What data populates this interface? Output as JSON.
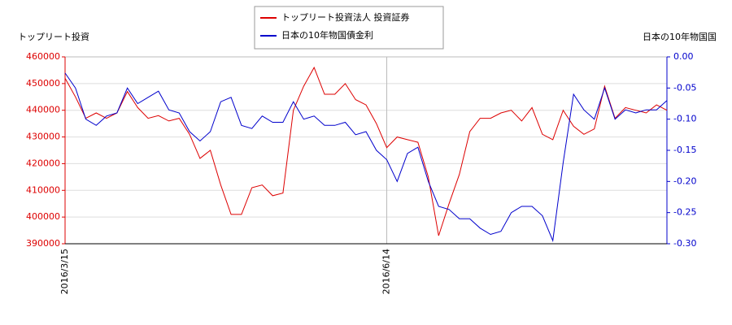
{
  "chart_data": {
    "type": "line",
    "y_label": "トップリート投資",
    "y2_label": "日本の10年物国国",
    "categories": [
      "2016/3/15",
      null,
      null,
      null,
      null,
      null,
      null,
      null,
      null,
      null,
      null,
      null,
      null,
      null,
      null,
      null,
      null,
      null,
      null,
      null,
      null,
      null,
      null,
      null,
      null,
      null,
      null,
      null,
      null,
      null,
      null,
      "2016/6/14",
      null,
      null,
      null,
      null,
      null,
      null,
      null,
      null,
      null,
      null,
      null,
      null,
      null,
      null,
      null,
      null,
      null,
      null,
      null,
      null,
      null,
      null,
      null,
      null,
      null,
      null,
      null
    ],
    "series": [
      {
        "name": "トップリート投資法人 投資証券",
        "color": "#dd0000",
        "axis": "y",
        "values": [
          452000,
          445000,
          437000,
          439000,
          437000,
          439000,
          447000,
          441000,
          437000,
          438000,
          436000,
          437000,
          431000,
          422000,
          425000,
          412000,
          401000,
          401000,
          411000,
          412000,
          408000,
          409000,
          440000,
          449000,
          456000,
          446000,
          446000,
          450000,
          444000,
          442000,
          435000,
          426000,
          430000,
          429000,
          428000,
          415000,
          393000,
          405000,
          416000,
          432000,
          437000,
          437000,
          439000,
          440000,
          436000,
          441000,
          431000,
          429000,
          440000,
          434000,
          431000,
          433000,
          449000,
          437000,
          441000,
          440000,
          439000,
          442000,
          440000
        ]
      },
      {
        "name": "日本の10年物国債金利",
        "color": "#0000cc",
        "axis": "y2",
        "values": [
          -0.026,
          -0.05,
          -0.1,
          -0.11,
          -0.095,
          -0.09,
          -0.05,
          -0.075,
          -0.065,
          -0.055,
          -0.085,
          -0.09,
          -0.12,
          -0.135,
          -0.12,
          -0.072,
          -0.065,
          -0.11,
          -0.115,
          -0.095,
          -0.105,
          -0.105,
          -0.072,
          -0.1,
          -0.095,
          -0.11,
          -0.11,
          -0.105,
          -0.125,
          -0.12,
          -0.15,
          -0.165,
          -0.2,
          -0.155,
          -0.145,
          -0.2,
          -0.24,
          -0.245,
          -0.26,
          -0.26,
          -0.275,
          -0.285,
          -0.28,
          -0.25,
          -0.24,
          -0.24,
          -0.255,
          -0.295,
          -0.17,
          -0.06,
          -0.085,
          -0.1,
          -0.05,
          -0.1,
          -0.085,
          -0.09,
          -0.085,
          -0.085,
          -0.07
        ]
      }
    ],
    "ylim": [
      390000,
      460000
    ],
    "yticks": [
      390000,
      400000,
      410000,
      420000,
      430000,
      440000,
      450000,
      460000
    ],
    "y2lim": [
      -0.3,
      0
    ],
    "y2ticks": [
      {
        "value": -0.3,
        "label": "-0.30"
      },
      -0.25,
      {
        "value": -0.2,
        "label": "-0.20"
      },
      -0.15,
      {
        "value": -0.1,
        "label": "-0.10"
      },
      -0.05,
      {
        "value": 0,
        "label": "0.00"
      }
    ],
    "grid": true
  }
}
